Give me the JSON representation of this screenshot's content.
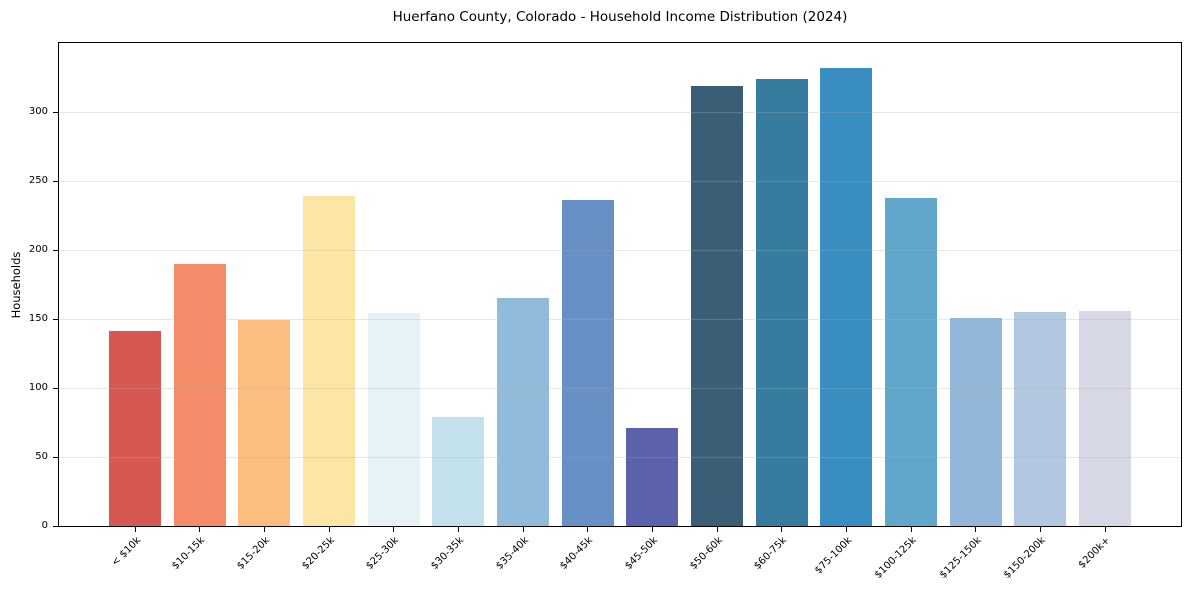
{
  "chart_data": {
    "type": "bar",
    "title": "Huerfano County, Colorado - Household Income Distribution (2024)",
    "xlabel": "",
    "ylabel": "Households",
    "ylim": [
      0,
      350
    ],
    "yticks": [
      0,
      50,
      100,
      150,
      200,
      250,
      300
    ],
    "grid": "horizontal",
    "legend": "none",
    "categories": [
      "< $10k",
      "$10-15k",
      "$15-20k",
      "$20-25k",
      "$25-30k",
      "$30-35k",
      "$35-40k",
      "$40-45k",
      "$45-50k",
      "$50-60k",
      "$60-75k",
      "$75-100k",
      "$100-125k",
      "$125-150k",
      "$150-200k",
      "$200k+"
    ],
    "values": [
      141,
      190,
      149,
      239,
      154,
      79,
      165,
      236,
      71,
      319,
      324,
      332,
      238,
      151,
      155,
      156
    ],
    "bar_colors": [
      "#d65850",
      "#f48b69",
      "#fcbe7e",
      "#fde5a6",
      "#e7f1f8",
      "#c3e1ed",
      "#91bbdb",
      "#6791c4",
      "#5c61ab",
      "#3a5e75",
      "#357c9e",
      "#388dc1",
      "#61a7cb",
      "#92b7d9",
      "#b2c7e0",
      "#d7d8e6"
    ],
    "styles": {
      "background": "#ffffff",
      "spine_color": "#000000",
      "grid_rgba": "rgba(176,176,176,0.3)",
      "text_color": "#000000"
    }
  }
}
